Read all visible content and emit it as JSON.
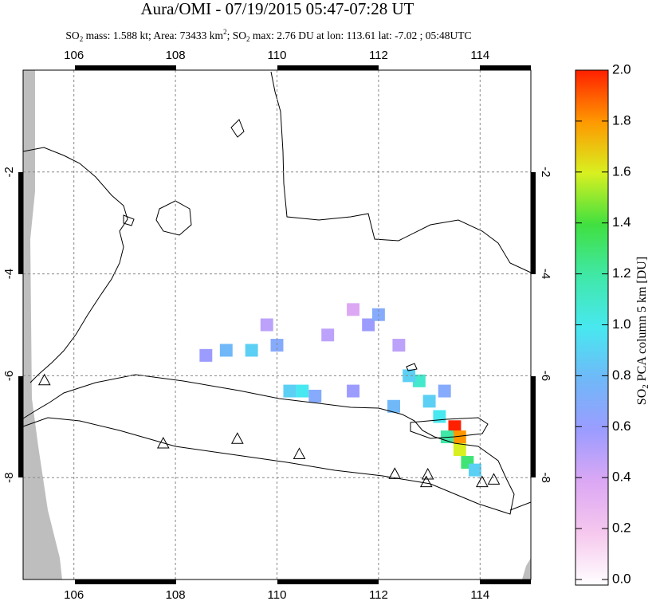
{
  "chart_data": {
    "type": "map",
    "title": "Aura/OMI - 07/19/2015 05:47-07:28 UT",
    "subtitle": [
      "SO",
      "2",
      " mass: 1.588 kt; Area: 73433 km",
      "2",
      "; SO",
      "2",
      " max: 2.76 DU at lon: 113.61 lat: -7.02 ; 05:48UTC"
    ],
    "xlim": [
      105,
      115
    ],
    "ylim": [
      -10,
      0
    ],
    "xticks": [
      106,
      108,
      110,
      112,
      114
    ],
    "yticks": [
      -2,
      -4,
      -6,
      -8
    ],
    "grid": true,
    "colorbar": {
      "label": [
        "SO",
        "2",
        " PCA column 5 km [DU]"
      ],
      "lim": [
        0,
        2
      ],
      "ticks": [
        {
          "value": 0,
          "label": "0.0"
        },
        {
          "value": 0.2,
          "label": "0.2"
        },
        {
          "value": 0.4,
          "label": "0.4"
        },
        {
          "value": 0.6,
          "label": "0.6"
        },
        {
          "value": 0.8,
          "label": "0.8"
        },
        {
          "value": 1,
          "label": "1.0"
        },
        {
          "value": 1.2,
          "label": "1.2"
        },
        {
          "value": 1.4,
          "label": "1.4"
        },
        {
          "value": 1.6,
          "label": "1.6"
        },
        {
          "value": 1.8,
          "label": "1.8"
        },
        {
          "value": 2,
          "label": "2.0"
        }
      ],
      "colormap": [
        {
          "value": 0,
          "color": "#ffffff"
        },
        {
          "value": 0.2,
          "color": "#f6c8ee"
        },
        {
          "value": 0.4,
          "color": "#dca8f4"
        },
        {
          "value": 0.6,
          "color": "#9c9cff"
        },
        {
          "value": 0.8,
          "color": "#70b8f8"
        },
        {
          "value": 1,
          "color": "#48e8f0"
        },
        {
          "value": 1.2,
          "color": "#40e8a8"
        },
        {
          "value": 1.4,
          "color": "#40e040"
        },
        {
          "value": 1.6,
          "color": "#d8f020"
        },
        {
          "value": 1.8,
          "color": "#ff9800"
        },
        {
          "value": 2,
          "color": "#ff2000"
        }
      ]
    },
    "plume": [
      {
        "lon": 113.5,
        "lat": -7.0,
        "value": 2.0
      },
      {
        "lon": 113.6,
        "lat": -7.2,
        "value": 1.8
      },
      {
        "lon": 113.6,
        "lat": -7.45,
        "value": 1.6
      },
      {
        "lon": 113.75,
        "lat": -7.7,
        "value": 1.3
      },
      {
        "lon": 113.35,
        "lat": -7.2,
        "value": 1.2
      },
      {
        "lon": 113.9,
        "lat": -7.85,
        "value": 0.9
      },
      {
        "lon": 113.2,
        "lat": -6.8,
        "value": 1.0
      },
      {
        "lon": 113.0,
        "lat": -6.5,
        "value": 0.9
      },
      {
        "lon": 112.8,
        "lat": -6.1,
        "value": 1.1
      },
      {
        "lon": 112.6,
        "lat": -6.0,
        "value": 0.9
      },
      {
        "lon": 113.3,
        "lat": -6.3,
        "value": 0.7
      },
      {
        "lon": 112.3,
        "lat": -6.6,
        "value": 0.8
      },
      {
        "lon": 111.5,
        "lat": -6.3,
        "value": 0.6
      },
      {
        "lon": 110.5,
        "lat": -6.3,
        "value": 1.0
      },
      {
        "lon": 110.25,
        "lat": -6.3,
        "value": 0.9
      },
      {
        "lon": 110.75,
        "lat": -6.4,
        "value": 0.7
      },
      {
        "lon": 109.5,
        "lat": -5.5,
        "value": 0.9
      },
      {
        "lon": 109.0,
        "lat": -5.5,
        "value": 0.8
      },
      {
        "lon": 110.0,
        "lat": -5.4,
        "value": 0.7
      },
      {
        "lon": 108.6,
        "lat": -5.6,
        "value": 0.6
      },
      {
        "lon": 109.8,
        "lat": -5.0,
        "value": 0.5
      },
      {
        "lon": 111.0,
        "lat": -5.2,
        "value": 0.5
      },
      {
        "lon": 111.8,
        "lat": -5.0,
        "value": 0.6
      },
      {
        "lon": 112.0,
        "lat": -4.8,
        "value": 0.7
      },
      {
        "lon": 111.5,
        "lat": -4.7,
        "value": 0.4
      },
      {
        "lon": 112.4,
        "lat": -5.4,
        "value": 0.5
      }
    ],
    "volcanoes": [
      {
        "lon": 105.42,
        "lat": -6.1
      },
      {
        "lon": 107.76,
        "lat": -7.34
      },
      {
        "lon": 109.22,
        "lat": -7.25
      },
      {
        "lon": 110.44,
        "lat": -7.55
      },
      {
        "lon": 112.32,
        "lat": -7.94
      },
      {
        "lon": 112.97,
        "lat": -7.95
      },
      {
        "lon": 112.94,
        "lat": -8.1
      },
      {
        "lon": 114.04,
        "lat": -8.1
      },
      {
        "lon": 114.27,
        "lat": -8.05
      }
    ]
  }
}
